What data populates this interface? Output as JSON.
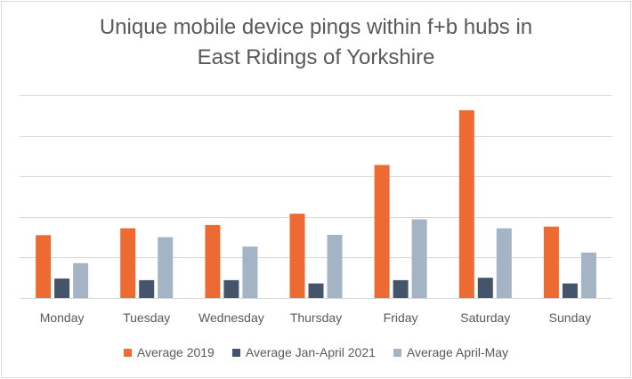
{
  "chart_data": {
    "type": "bar",
    "title": "Unique mobile device pings within f+b hubs in East Ridings of Yorkshire",
    "title_lines": [
      "Unique mobile device pings within f+b hubs in",
      "East Ridings of Yorkshire"
    ],
    "xlabel": "",
    "ylabel": "",
    "categories": [
      "Monday",
      "Tuesday",
      "Wednesday",
      "Thursday",
      "Friday",
      "Saturday",
      "Sunday"
    ],
    "series": [
      {
        "name": "Average 2019",
        "color": "#ed6a33",
        "values": [
          1.55,
          1.72,
          1.8,
          2.08,
          3.28,
          4.63,
          1.76
        ]
      },
      {
        "name": "Average Jan-April 2021",
        "color": "#44546a",
        "values": [
          0.48,
          0.44,
          0.44,
          0.36,
          0.44,
          0.5,
          0.36
        ]
      },
      {
        "name": "Average April-May",
        "color": "#a5b4c4",
        "values": [
          0.86,
          1.5,
          1.27,
          1.56,
          1.94,
          1.72,
          1.12
        ]
      }
    ],
    "ylim": [
      0,
      5
    ],
    "y_gridlines": [
      0,
      1,
      2,
      3,
      4,
      5
    ],
    "y_tick_labels_shown": false,
    "grid": true,
    "legend_position": "bottom"
  }
}
